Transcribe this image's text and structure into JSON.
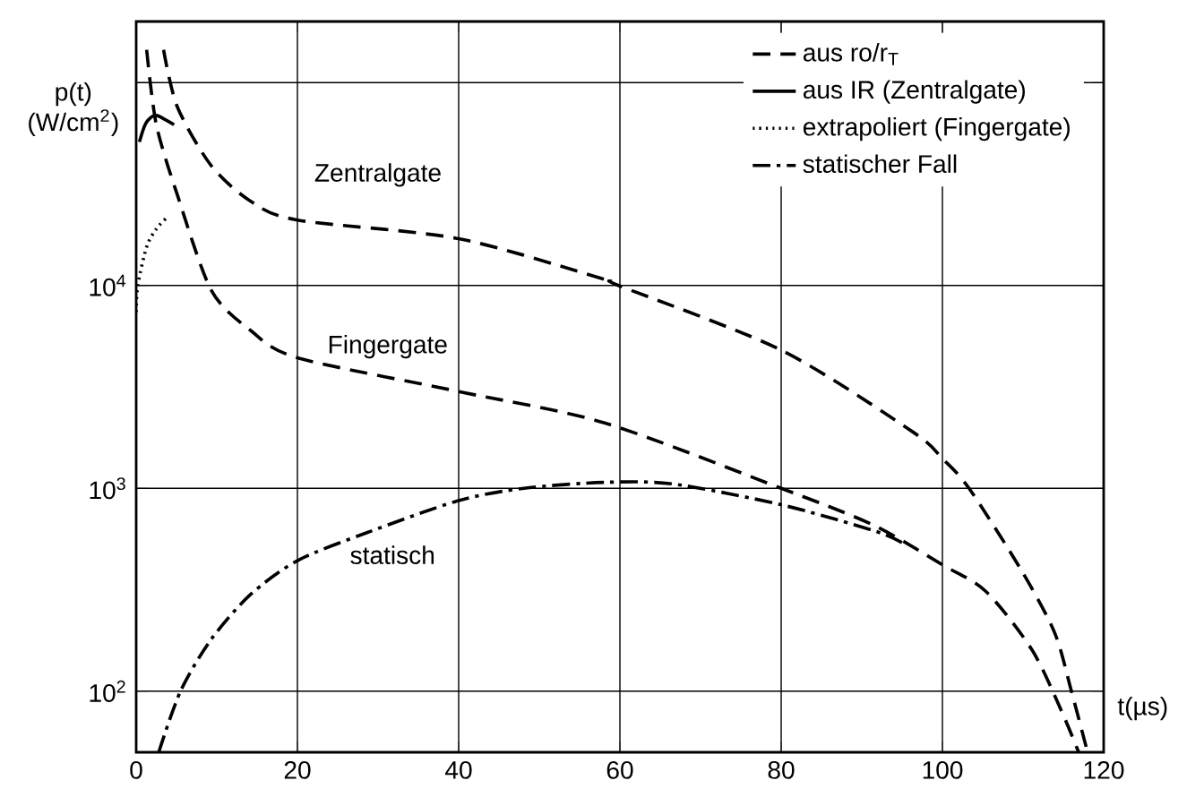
{
  "chart_data": {
    "type": "line",
    "xlabel": "t(µs)",
    "ylabel": "p(t) (W/cm$^{2}$)",
    "log": "y",
    "grid": true,
    "legend": "top right",
    "xlim": [
      0,
      120
    ],
    "xticks": [
      0,
      20,
      40,
      60,
      80,
      100,
      120
    ],
    "ylim": [
      50,
      200000
    ],
    "yticks": [
      {
        "value": 100,
        "label": "10$^{2}$"
      },
      {
        "value": 1000,
        "label": "10$^{3}$"
      },
      {
        "value": 10000,
        "label": "10$^{4}$"
      },
      {
        "value": 100000,
        "label": null
      }
    ],
    "series": [
      {
        "name": "aus ro/r$_{T}$",
        "color": "#000000",
        "line_style": "dashed",
        "x": [
          3.4,
          5.1,
          9.3,
          14.2,
          20,
          40,
          58.1,
          59.8,
          80,
          96.3,
          100,
          103.3,
          109.7,
          113.9,
          116,
          118
        ],
        "values": [
          145000,
          76000,
          39000,
          26000,
          21000,
          17000,
          10700,
          10000,
          4800,
          1900,
          1400,
          1000,
          400,
          195,
          100,
          50
        ]
      },
      {
        "color": "#000000",
        "line_style": "dashed",
        "x": [
          1.3,
          2.5,
          5.1,
          9.3,
          14.2,
          20,
          40,
          58.1,
          80,
          91.4,
          100,
          105.4,
          111.1,
          114.7,
          116.9
        ],
        "values": [
          145000,
          62000,
          28000,
          9500,
          6000,
          4400,
          3000,
          2100,
          1000,
          660,
          420,
          310,
          160,
          81,
          50
        ]
      },
      {
        "name": "aus IR (Zentralgate)",
        "color": "#000000",
        "line_style": "solid",
        "x": [
          0.4,
          1.2,
          2.3,
          3.5,
          4.7
        ],
        "values": [
          51000,
          63000,
          69000,
          66000,
          62000
        ]
      },
      {
        "name": "extrapoliert (Fingergate)",
        "color": "#000000",
        "line_style": "dotted",
        "x": [
          0,
          0.2,
          1.3,
          2.5,
          4.0
        ],
        "values": [
          7400,
          10000,
          15500,
          19000,
          22000
        ]
      },
      {
        "name": "statischer Fall",
        "color": "#000000",
        "line_style": "dashdot",
        "x": [
          2.8,
          5.5,
          9.3,
          14.2,
          20,
          28.4,
          40,
          48.1,
          58.1,
          66.6,
          80,
          91.4,
          95
        ],
        "values": [
          50,
          100,
          180,
          300,
          440,
          600,
          870,
          1000,
          1070,
          1050,
          830,
          620,
          540
        ]
      }
    ],
    "annotations": [
      "Zentralgate",
      "Fingergate",
      "statisch"
    ]
  }
}
